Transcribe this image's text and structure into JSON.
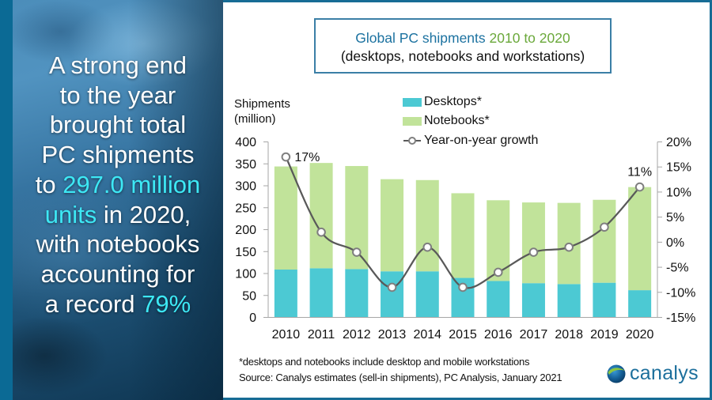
{
  "headline": {
    "lines": [
      [
        {
          "text": "A strong end"
        }
      ],
      [
        {
          "text": "to the year"
        }
      ],
      [
        {
          "text": "brought total"
        }
      ],
      [
        {
          "text": "PC shipments"
        }
      ],
      [
        {
          "text": "to "
        },
        {
          "text": "297.0 million",
          "highlight": true
        }
      ],
      [
        {
          "text": "units",
          "highlight": true
        },
        {
          "text": " in 2020,"
        }
      ],
      [
        {
          "text": "with notebooks"
        }
      ],
      [
        {
          "text": "accounting for"
        }
      ],
      [
        {
          "text": "a record "
        },
        {
          "text": "79%",
          "highlight": true
        }
      ]
    ],
    "highlight_color": "#3de8f5"
  },
  "title": {
    "main_part1": "Global PC shipments",
    "main_part2": "2010 to 2020",
    "subtitle": "(desktops, notebooks and workstations)",
    "colors": {
      "part1": "#1c72a0",
      "part2": "#6aa83a"
    }
  },
  "chart_data": {
    "type": "bar",
    "stacked": true,
    "combo_line_secondary_axis": true,
    "title": "Global PC shipments 2010 to 2020 (desktops, notebooks and workstations)",
    "ylabel": [
      "Shipments",
      "(million)"
    ],
    "xlabel": "",
    "categories": [
      "2010",
      "2011",
      "2012",
      "2013",
      "2014",
      "2015",
      "2016",
      "2017",
      "2018",
      "2019",
      "2020"
    ],
    "series": [
      {
        "name": "Desktops*",
        "kind": "bar",
        "axis": "left",
        "color": "#4cc9d3",
        "values": [
          109,
          112,
          110,
          105,
          105,
          90,
          83,
          78,
          76,
          79,
          62
        ]
      },
      {
        "name": "Notebooks*",
        "kind": "bar",
        "axis": "left",
        "color": "#c1e39a",
        "values": [
          235,
          240,
          235,
          210,
          208,
          193,
          184,
          184,
          185,
          189,
          235
        ]
      },
      {
        "name": "Year-on-year growth",
        "kind": "line",
        "axis": "right",
        "smooth": true,
        "color": "#595959",
        "marker_color": "#7f7f7f",
        "values": [
          17,
          2,
          -2,
          -9,
          -1,
          -9,
          -6,
          -2,
          -1,
          3,
          11
        ]
      }
    ],
    "ylim": [
      0,
      400
    ],
    "yticks": [
      0,
      50,
      100,
      150,
      200,
      250,
      300,
      350,
      400
    ],
    "y2lim": [
      -15,
      20
    ],
    "y2ticks": [
      -15,
      -10,
      -5,
      0,
      5,
      10,
      15,
      20
    ],
    "y2tick_labels": [
      "-15%",
      "-10%",
      "-5%",
      "0%",
      "5%",
      "10%",
      "15%",
      "20%"
    ],
    "data_labels": [
      {
        "series": "Year-on-year growth",
        "category": "2010",
        "index": 0,
        "text": "17%",
        "position": "right"
      },
      {
        "series": "Year-on-year growth",
        "category": "2020",
        "index": 10,
        "text": "11%",
        "position": "above"
      }
    ],
    "legend": [
      "Desktops*",
      "Notebooks*",
      "Year-on-year growth"
    ],
    "legend_position": "top-center",
    "grid": false
  },
  "footer": {
    "note": "*desktops and notebooks include desktop and mobile workstations",
    "source": "Source: Canalys estimates (sell-in shipments), PC Analysis, January 2021"
  },
  "logo": {
    "text": "canalys",
    "color": "#1c6f9c"
  }
}
